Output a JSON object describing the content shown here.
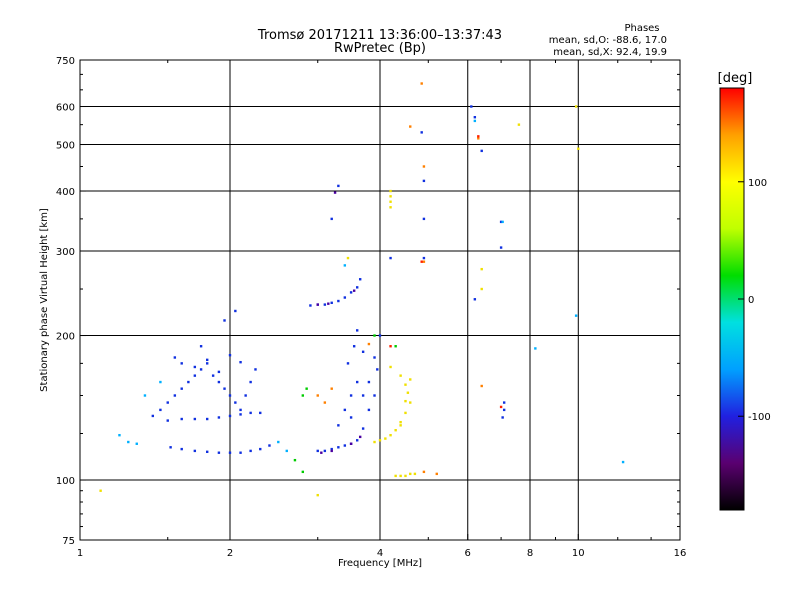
{
  "chart_data": {
    "type": "scatter",
    "title_line1": "Tromsø 20171211 13:36:00–13:37:43",
    "title_line2": "RwPretec (Bp)",
    "phase_box": {
      "title": "Phases",
      "line1": "mean, sd,O: -88.6, 17.0",
      "line2": "mean, sd,X:  92.4, 19.9"
    },
    "xlabel": "Frequency [MHz]",
    "ylabel": "Stationary phase Virtual Height [km]",
    "x_scale": "log",
    "y_scale": "log",
    "xlim": [
      1,
      16
    ],
    "ylim": [
      75,
      750
    ],
    "x_ticks": [
      1,
      2,
      4,
      6,
      8,
      10,
      16
    ],
    "x_tick_labels": [
      "1",
      "2",
      "4",
      "6",
      "8",
      "10",
      "16"
    ],
    "y_ticks": [
      75,
      100,
      200,
      300,
      400,
      500,
      600,
      750
    ],
    "y_tick_labels": [
      "75",
      "100",
      "200",
      "300",
      "400",
      "500",
      "600",
      "750"
    ],
    "grid": true,
    "colorbar": {
      "label": "[deg]",
      "range": [
        -180,
        180
      ],
      "ticks": [
        100,
        0,
        -100
      ],
      "tick_labels": [
        "100",
        "0",
        "-100"
      ],
      "colors": [
        "#000000",
        "#5a0070",
        "#2020e0",
        "#00a0ff",
        "#00e0e0",
        "#00dd00",
        "#c0ff00",
        "#ffff00",
        "#ffa000",
        "#ff0000"
      ]
    },
    "series": [
      {
        "color": "#1030e0",
        "points": [
          [
            1.4,
            136
          ],
          [
            1.45,
            140
          ],
          [
            1.5,
            145
          ],
          [
            1.55,
            150
          ],
          [
            1.6,
            155
          ],
          [
            1.65,
            160
          ],
          [
            1.7,
            165
          ],
          [
            1.75,
            170
          ],
          [
            1.8,
            175
          ],
          [
            1.85,
            165
          ],
          [
            1.9,
            160
          ],
          [
            1.95,
            155
          ],
          [
            2.0,
            150
          ],
          [
            2.05,
            145
          ],
          [
            2.1,
            140
          ],
          [
            2.15,
            150
          ],
          [
            2.2,
            160
          ],
          [
            2.25,
            170
          ],
          [
            1.5,
            133
          ],
          [
            1.6,
            134
          ],
          [
            1.7,
            134
          ],
          [
            1.8,
            134
          ],
          [
            1.9,
            135
          ],
          [
            2.0,
            136
          ],
          [
            2.1,
            137
          ],
          [
            2.2,
            138
          ],
          [
            2.3,
            138
          ],
          [
            1.52,
            117
          ],
          [
            1.6,
            116
          ],
          [
            1.7,
            115
          ],
          [
            1.8,
            114.5
          ],
          [
            1.9,
            114
          ],
          [
            2.0,
            114
          ],
          [
            2.1,
            114
          ],
          [
            2.2,
            115
          ],
          [
            2.3,
            116
          ],
          [
            2.4,
            118
          ],
          [
            1.55,
            180
          ],
          [
            1.6,
            175
          ],
          [
            1.7,
            172
          ],
          [
            1.8,
            178
          ],
          [
            1.9,
            168
          ],
          [
            2.0,
            182
          ],
          [
            2.1,
            176
          ],
          [
            1.75,
            190
          ],
          [
            1.95,
            215
          ],
          [
            2.05,
            225
          ],
          [
            2.9,
            231
          ],
          [
            3.0,
            232
          ],
          [
            3.1,
            232
          ],
          [
            3.2,
            234
          ],
          [
            3.3,
            236
          ],
          [
            3.4,
            240
          ],
          [
            3.5,
            246
          ],
          [
            3.6,
            252
          ],
          [
            3.65,
            262
          ],
          [
            3.0,
            115
          ],
          [
            3.1,
            115
          ],
          [
            3.2,
            116
          ],
          [
            3.3,
            117
          ],
          [
            3.4,
            118
          ],
          [
            3.5,
            119
          ],
          [
            3.6,
            121
          ],
          [
            3.3,
            130
          ],
          [
            3.4,
            140
          ],
          [
            3.5,
            150
          ],
          [
            3.6,
            160
          ],
          [
            3.7,
            150
          ],
          [
            3.8,
            140
          ],
          [
            3.9,
            150
          ],
          [
            3.45,
            175
          ],
          [
            3.55,
            190
          ],
          [
            3.6,
            205
          ],
          [
            3.7,
            185
          ],
          [
            3.95,
            170
          ],
          [
            3.5,
            135
          ],
          [
            3.7,
            128
          ],
          [
            3.8,
            160
          ],
          [
            3.9,
            180
          ],
          [
            4.0,
            200
          ],
          [
            4.9,
            420
          ],
          [
            4.9,
            350
          ],
          [
            4.9,
            290
          ],
          [
            4.85,
            530
          ],
          [
            6.1,
            600
          ],
          [
            6.2,
            570
          ],
          [
            6.4,
            485
          ],
          [
            7.0,
            345
          ],
          [
            7.0,
            305
          ],
          [
            6.2,
            238
          ],
          [
            7.1,
            140
          ],
          [
            7.1,
            145
          ],
          [
            7.05,
            135
          ],
          [
            3.3,
            410
          ],
          [
            3.2,
            350
          ],
          [
            4.2,
            290
          ]
        ]
      },
      {
        "color": "#4a00a0",
        "points": [
          [
            3.05,
            114
          ],
          [
            3.2,
            115
          ],
          [
            3.5,
            119
          ],
          [
            3.65,
            123
          ],
          [
            3.0,
            232
          ],
          [
            3.15,
            233
          ],
          [
            3.55,
            248
          ],
          [
            3.25,
            397
          ]
        ]
      },
      {
        "color": "#00b0ff",
        "points": [
          [
            1.25,
            120
          ],
          [
            1.3,
            119
          ],
          [
            1.2,
            124
          ],
          [
            1.35,
            150
          ],
          [
            1.45,
            160
          ],
          [
            2.5,
            120
          ],
          [
            2.6,
            115
          ],
          [
            6.2,
            560
          ],
          [
            3.4,
            280
          ],
          [
            8.2,
            188
          ],
          [
            12.3,
            109
          ],
          [
            9.9,
            220
          ],
          [
            7.05,
            345
          ]
        ]
      },
      {
        "color": "#00cc00",
        "points": [
          [
            2.8,
            150
          ],
          [
            2.85,
            155
          ],
          [
            2.7,
            110
          ],
          [
            2.8,
            104
          ],
          [
            3.9,
            200
          ],
          [
            4.3,
            190
          ]
        ]
      },
      {
        "color": "#f0e000",
        "points": [
          [
            3.9,
            120
          ],
          [
            4.0,
            121
          ],
          [
            4.1,
            122
          ],
          [
            4.2,
            124
          ],
          [
            4.3,
            127
          ],
          [
            4.4,
            132
          ],
          [
            4.5,
            138
          ],
          [
            4.6,
            145
          ],
          [
            4.55,
            152
          ],
          [
            4.5,
            158
          ],
          [
            4.6,
            162
          ],
          [
            4.4,
            165
          ],
          [
            4.2,
            172
          ],
          [
            4.4,
            130
          ],
          [
            4.5,
            146
          ],
          [
            4.3,
            102
          ],
          [
            4.4,
            102
          ],
          [
            4.5,
            102
          ],
          [
            4.6,
            103
          ],
          [
            4.7,
            103
          ],
          [
            4.2,
            400
          ],
          [
            4.2,
            390
          ],
          [
            4.2,
            380
          ],
          [
            4.2,
            370
          ],
          [
            6.4,
            275
          ],
          [
            6.4,
            250
          ],
          [
            7.6,
            550
          ],
          [
            9.9,
            600
          ],
          [
            10.0,
            490
          ],
          [
            1.1,
            95
          ],
          [
            3.0,
            93
          ],
          [
            3.45,
            290
          ]
        ]
      },
      {
        "color": "#ff8000",
        "points": [
          [
            3.1,
            145
          ],
          [
            3.0,
            150
          ],
          [
            3.2,
            155
          ],
          [
            4.85,
            670
          ],
          [
            4.6,
            545
          ],
          [
            4.9,
            450
          ],
          [
            4.9,
            285
          ],
          [
            6.3,
            515
          ],
          [
            6.4,
            157
          ],
          [
            3.8,
            192
          ],
          [
            4.9,
            104
          ],
          [
            5.2,
            103
          ]
        ]
      },
      {
        "color": "#ff2000",
        "points": [
          [
            4.85,
            285
          ],
          [
            6.3,
            520
          ],
          [
            4.2,
            190
          ],
          [
            7.0,
            142
          ]
        ]
      }
    ]
  }
}
